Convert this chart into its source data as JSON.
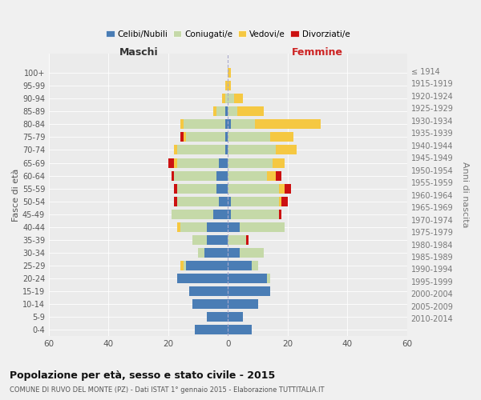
{
  "age_groups": [
    "0-4",
    "5-9",
    "10-14",
    "15-19",
    "20-24",
    "25-29",
    "30-34",
    "35-39",
    "40-44",
    "45-49",
    "50-54",
    "55-59",
    "60-64",
    "65-69",
    "70-74",
    "75-79",
    "80-84",
    "85-89",
    "90-94",
    "95-99",
    "100+"
  ],
  "birth_years": [
    "2010-2014",
    "2005-2009",
    "2000-2004",
    "1995-1999",
    "1990-1994",
    "1985-1989",
    "1980-1984",
    "1975-1979",
    "1970-1974",
    "1965-1969",
    "1960-1964",
    "1955-1959",
    "1950-1954",
    "1945-1949",
    "1940-1944",
    "1935-1939",
    "1930-1934",
    "1925-1929",
    "1920-1924",
    "1915-1919",
    "≤ 1914"
  ],
  "colors": {
    "celibe": "#4a7db5",
    "coniugato": "#c5d9a8",
    "vedovo": "#f5c842",
    "divorziato": "#cc1111"
  },
  "maschi": {
    "celibe": [
      11,
      7,
      12,
      13,
      17,
      14,
      8,
      7,
      7,
      5,
      3,
      4,
      4,
      3,
      1,
      1,
      1,
      1,
      0,
      0,
      0
    ],
    "coniugato": [
      0,
      0,
      0,
      0,
      0,
      1,
      2,
      5,
      9,
      14,
      14,
      13,
      14,
      14,
      16,
      13,
      14,
      3,
      1,
      0,
      0
    ],
    "vedovo": [
      0,
      0,
      0,
      0,
      0,
      1,
      0,
      0,
      1,
      0,
      0,
      0,
      0,
      1,
      1,
      1,
      1,
      1,
      1,
      1,
      0
    ],
    "divorziato": [
      0,
      0,
      0,
      0,
      0,
      0,
      0,
      0,
      0,
      0,
      1,
      1,
      1,
      2,
      0,
      1,
      0,
      0,
      0,
      0,
      0
    ]
  },
  "femmine": {
    "nubile": [
      8,
      5,
      10,
      14,
      13,
      8,
      4,
      0,
      4,
      1,
      1,
      0,
      0,
      0,
      0,
      0,
      1,
      0,
      0,
      0,
      0
    ],
    "coniugata": [
      0,
      0,
      0,
      0,
      1,
      2,
      8,
      6,
      15,
      16,
      16,
      17,
      13,
      15,
      16,
      14,
      8,
      3,
      2,
      0,
      0
    ],
    "vedova": [
      0,
      0,
      0,
      0,
      0,
      0,
      0,
      0,
      0,
      0,
      1,
      2,
      3,
      4,
      7,
      8,
      22,
      9,
      3,
      1,
      1
    ],
    "divorziata": [
      0,
      0,
      0,
      0,
      0,
      0,
      0,
      1,
      0,
      1,
      2,
      2,
      2,
      0,
      0,
      0,
      0,
      0,
      0,
      0,
      0
    ]
  },
  "xlim": 60,
  "title": "Popolazione per età, sesso e stato civile - 2015",
  "subtitle": "COMUNE DI RUVO DEL MONTE (PZ) - Dati ISTAT 1° gennaio 2015 - Elaborazione TUTTITALIA.IT",
  "ylabel_left": "Fasce di età",
  "ylabel_right": "Anni di nascita",
  "label_maschi": "Maschi",
  "label_femmine": "Femmine",
  "legend_labels": [
    "Celibi/Nubili",
    "Coniugati/e",
    "Vedovi/e",
    "Divorziati/e"
  ],
  "bg_color": "#f0f0f0",
  "plot_bg": "#ebebeb"
}
